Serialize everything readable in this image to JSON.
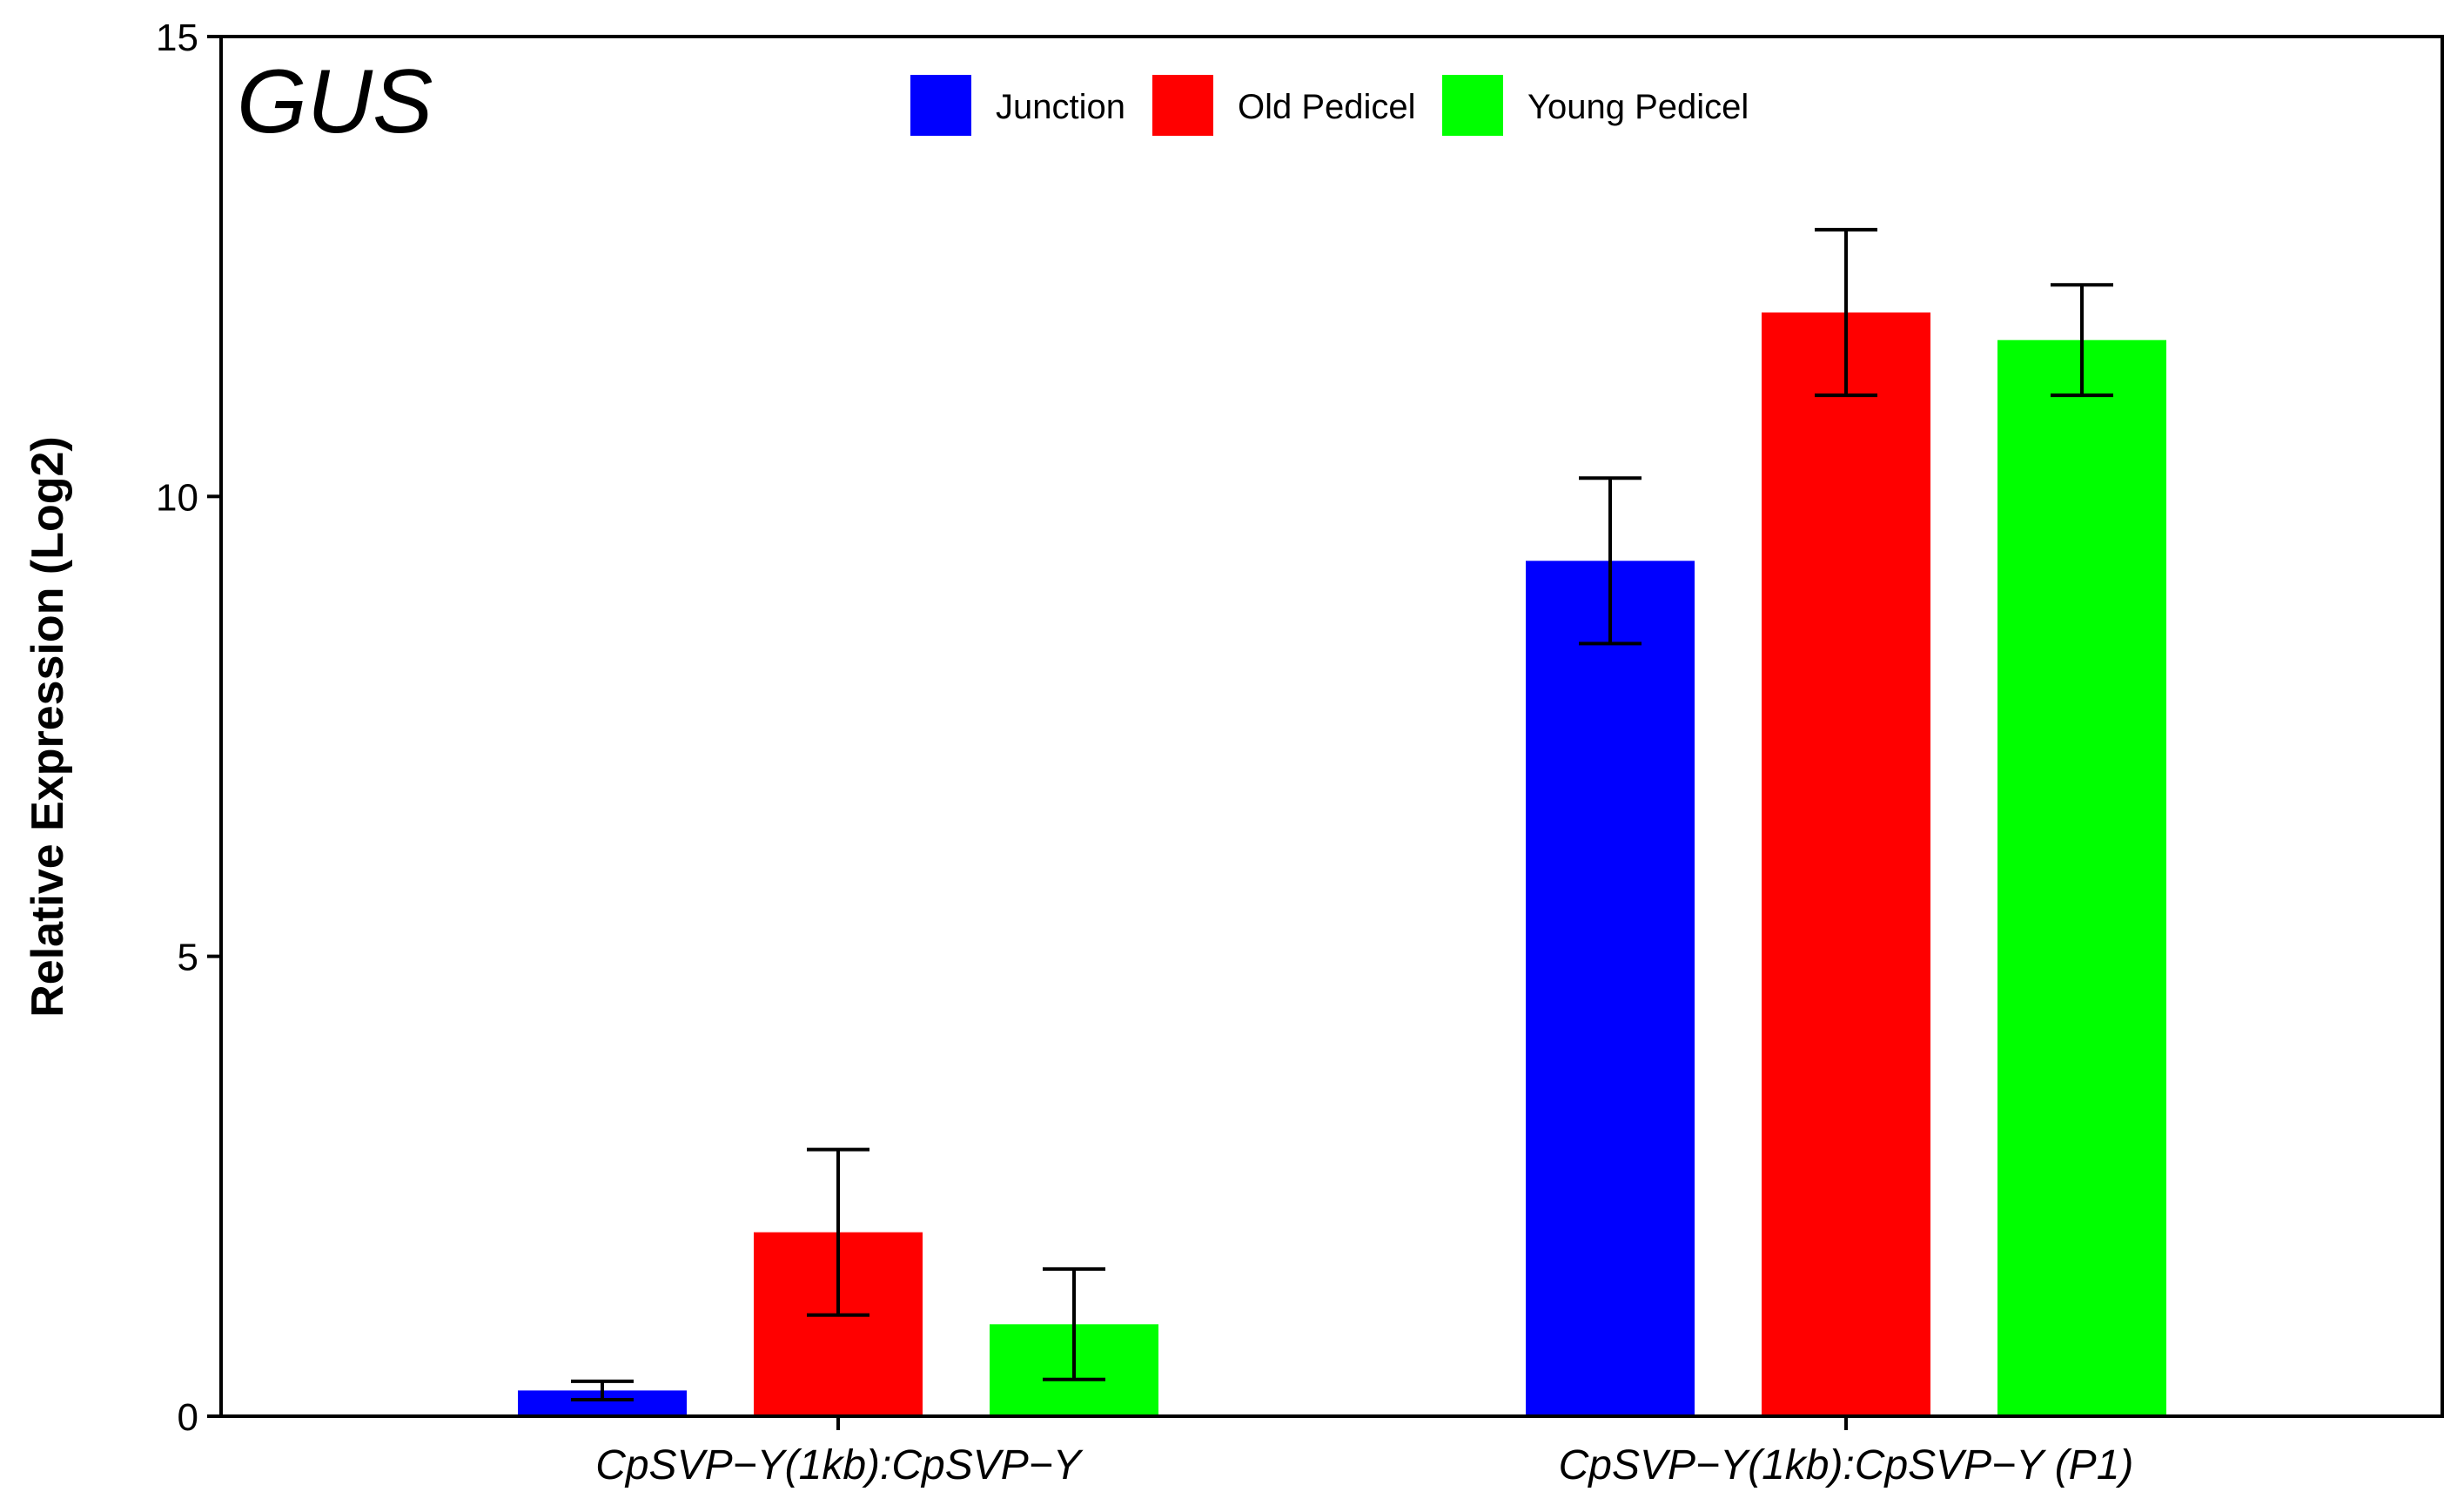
{
  "chart_data": {
    "type": "bar",
    "title": "GUS",
    "xlabel": "",
    "ylabel": "Relative Expression (Log2)",
    "ylim": [
      0,
      15
    ],
    "yticks": [
      "0",
      "5",
      "10",
      "15"
    ],
    "categories": [
      "CpSVP−Y(1kb):CpSVP−Y",
      "CpSVP−Y(1kb):CpSVP−Y (P1)"
    ],
    "series": [
      {
        "name": "Junction",
        "color": "#0000ff",
        "values": [
          0.28,
          9.3
        ],
        "error": [
          0.1,
          0.9
        ]
      },
      {
        "name": "Old Pedicel",
        "color": "#ff0000",
        "values": [
          2.0,
          12.0
        ],
        "error": [
          0.9,
          0.9
        ]
      },
      {
        "name": "Young Pedicel",
        "color": "#00ff00",
        "values": [
          1.0,
          11.7
        ],
        "error": [
          0.6,
          0.6
        ]
      }
    ],
    "legend_position": "top-center",
    "grid": false
  }
}
